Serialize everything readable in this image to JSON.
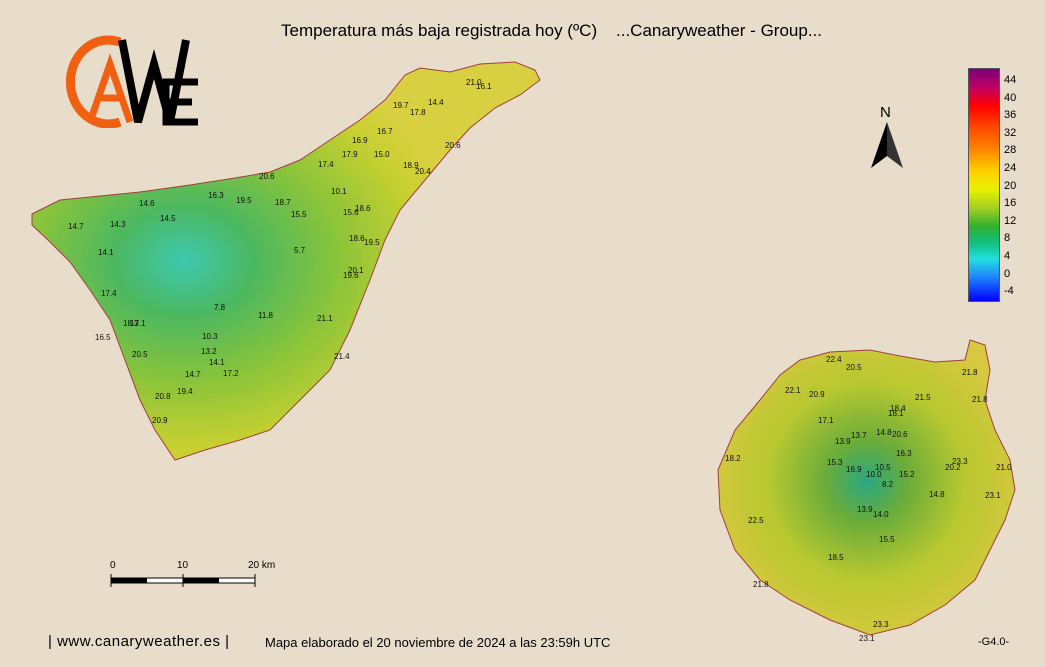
{
  "header": {
    "title": "Temperatura más baja registrada hoy (ºC)    ...Canaryweather - Group..."
  },
  "logo": {
    "letters": [
      "C",
      "A",
      "W",
      "E"
    ]
  },
  "compass": {
    "label": "N"
  },
  "legend": {
    "labels": [
      "44",
      "40",
      "36",
      "32",
      "28",
      "24",
      "20",
      "16",
      "12",
      "8",
      "4",
      "0",
      "-4"
    ],
    "colors": [
      "#7a007a",
      "#c00060",
      "#ff0000",
      "#ff4000",
      "#ff8000",
      "#ffd000",
      "#e8f000",
      "#a0d020",
      "#30b030",
      "#10c080",
      "#20e0e0",
      "#2080ff",
      "#0000ff"
    ]
  },
  "scale_bar": {
    "labels": [
      "0",
      "10",
      "20 km"
    ]
  },
  "stations_tenerife": [
    "21.0",
    "16.1",
    "14.4",
    "19.7",
    "17.8",
    "16.7",
    "16.9",
    "17.9",
    "15.0",
    "20.6",
    "18.9",
    "20.4",
    "17.4",
    "20.6",
    "16.3",
    "19.5",
    "18.7",
    "15.5",
    "10.1",
    "15.6",
    "18.6",
    "14.6",
    "14.5",
    "14.3",
    "14.7",
    "5.7",
    "18.6",
    "19.5",
    "14.1",
    "20.1",
    "19.6",
    "17.4",
    "7.8",
    "11.8",
    "21.1",
    "18.3",
    "17.1",
    "16.5",
    "10.3",
    "13.2",
    "20.5",
    "14.1",
    "21.4",
    "14.7",
    "17.2",
    "19.4",
    "20.8",
    "20.9"
  ],
  "stations_grancanaria": [
    "22.4",
    "20.5",
    "21.8",
    "22.1",
    "20.9",
    "21.5",
    "21.8",
    "18.4",
    "18.1",
    "17.1",
    "13.7",
    "13.9",
    "14.8",
    "20.6",
    "16.3",
    "18.2",
    "15.3",
    "16.9",
    "10.5",
    "10.0",
    "15.2",
    "23.3",
    "20.2",
    "21.0",
    "8.2",
    "14.8",
    "23.1",
    "13.9",
    "14.0",
    "22.5",
    "15.5",
    "18.5",
    "21.8",
    "23.3",
    "23.1"
  ],
  "footer": {
    "website": "| www.canaryweather.es |",
    "note": "Mapa elaborado el 20 noviembre de 2024 a las 23:59h UTC",
    "code": "-G4.0-"
  }
}
